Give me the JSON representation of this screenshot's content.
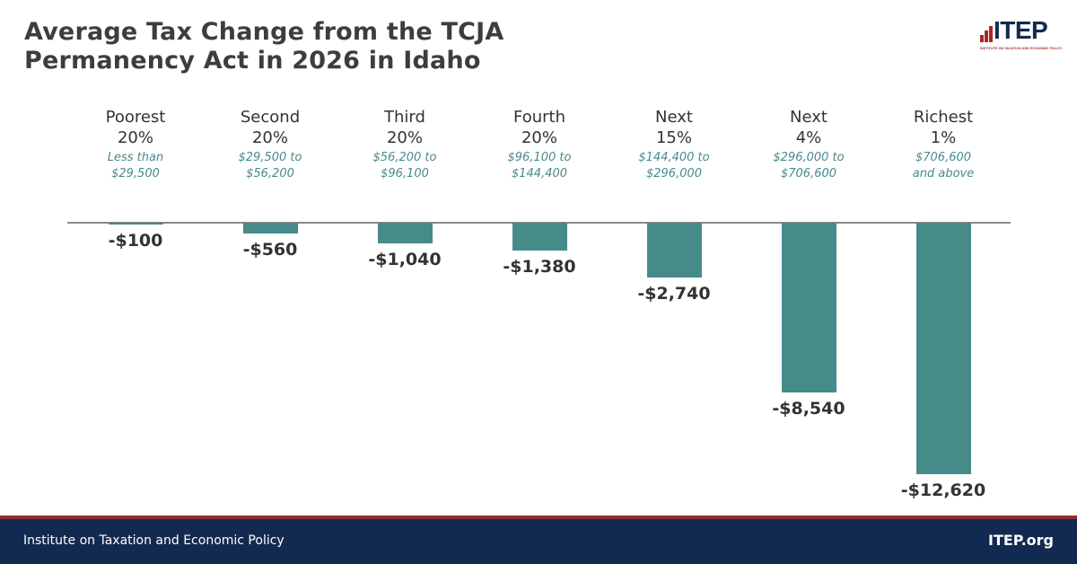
{
  "header": {
    "title_line1": "Average Tax Change from the TCJA",
    "title_line2": "Permanency Act in 2026 in Idaho"
  },
  "logo": {
    "wordmark": "ITEP",
    "subtitle": "INSTITUTE ON TAXATION AND ECONOMIC POLICY",
    "accent_color": "#a8292b",
    "brand_color": "#132a50"
  },
  "chart_data": {
    "type": "bar",
    "title": "Average Tax Change from the TCJA Permanency Act in 2026 in Idaho",
    "xlabel": "",
    "ylabel": "",
    "ylim": [
      -12620,
      0
    ],
    "grid": false,
    "bar_color": "#478a8a",
    "categories": [
      {
        "line1": "Poorest",
        "line2": "20%",
        "range1": "Less than",
        "range2": "$29,500"
      },
      {
        "line1": "Second",
        "line2": "20%",
        "range1": "$29,500 to",
        "range2": "$56,200"
      },
      {
        "line1": "Third",
        "line2": "20%",
        "range1": "$56,200 to",
        "range2": "$96,100"
      },
      {
        "line1": "Fourth",
        "line2": "20%",
        "range1": "$96,100 to",
        "range2": "$144,400"
      },
      {
        "line1": "Next",
        "line2": "15%",
        "range1": "$144,400 to",
        "range2": "$296,000"
      },
      {
        "line1": "Next",
        "line2": "4%",
        "range1": "$296,000 to",
        "range2": "$706,600"
      },
      {
        "line1": "Richest",
        "line2": "1%",
        "range1": "$706,600",
        "range2": "and above"
      }
    ],
    "values": [
      -100,
      -560,
      -1040,
      -1380,
      -2740,
      -8540,
      -12620
    ],
    "labels": [
      "-$100",
      "-$560",
      "-$1,040",
      "-$1,380",
      "-$2,740",
      "-$8,540",
      "-$12,620"
    ]
  },
  "footer": {
    "organization": "Institute on Taxation and Economic Policy",
    "website": "ITEP.org"
  }
}
